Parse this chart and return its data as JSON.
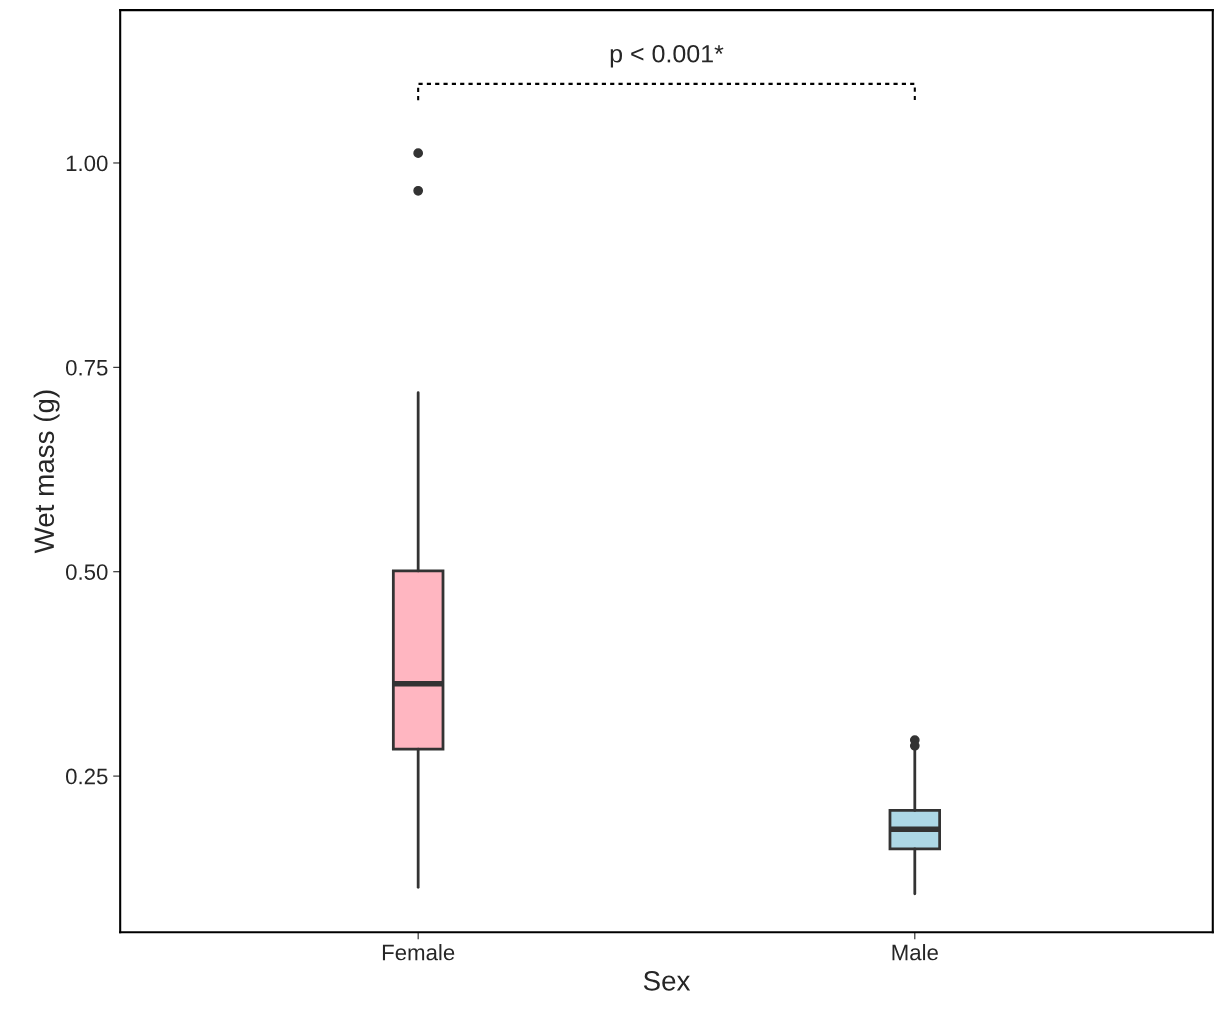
{
  "chart_data": {
    "type": "box",
    "xlabel": "Sex",
    "ylabel": "Wet mass (g)",
    "categories": [
      "Female",
      "Male"
    ],
    "colors": [
      "#ffb6c1",
      "#add8e6"
    ],
    "boxes": [
      {
        "low": 0.114,
        "q1": 0.283,
        "median": 0.363,
        "q3": 0.501,
        "high": 0.719,
        "outliers": [
          1.012,
          0.966
        ]
      },
      {
        "low": 0.106,
        "q1": 0.161,
        "median": 0.185,
        "q3": 0.208,
        "high": 0.282,
        "outliers": [
          0.294,
          0.287
        ]
      }
    ],
    "ylim": [
      0.059,
      1.187
    ],
    "yticks": [
      {
        "value": 0.25,
        "label": "0.25"
      },
      {
        "value": 0.5,
        "label": "0.50"
      },
      {
        "value": 0.75,
        "label": "0.75"
      },
      {
        "value": 1.0,
        "label": "1.00"
      }
    ],
    "annotations": [
      "p < 0.001*"
    ],
    "grid": false,
    "legend": false
  }
}
